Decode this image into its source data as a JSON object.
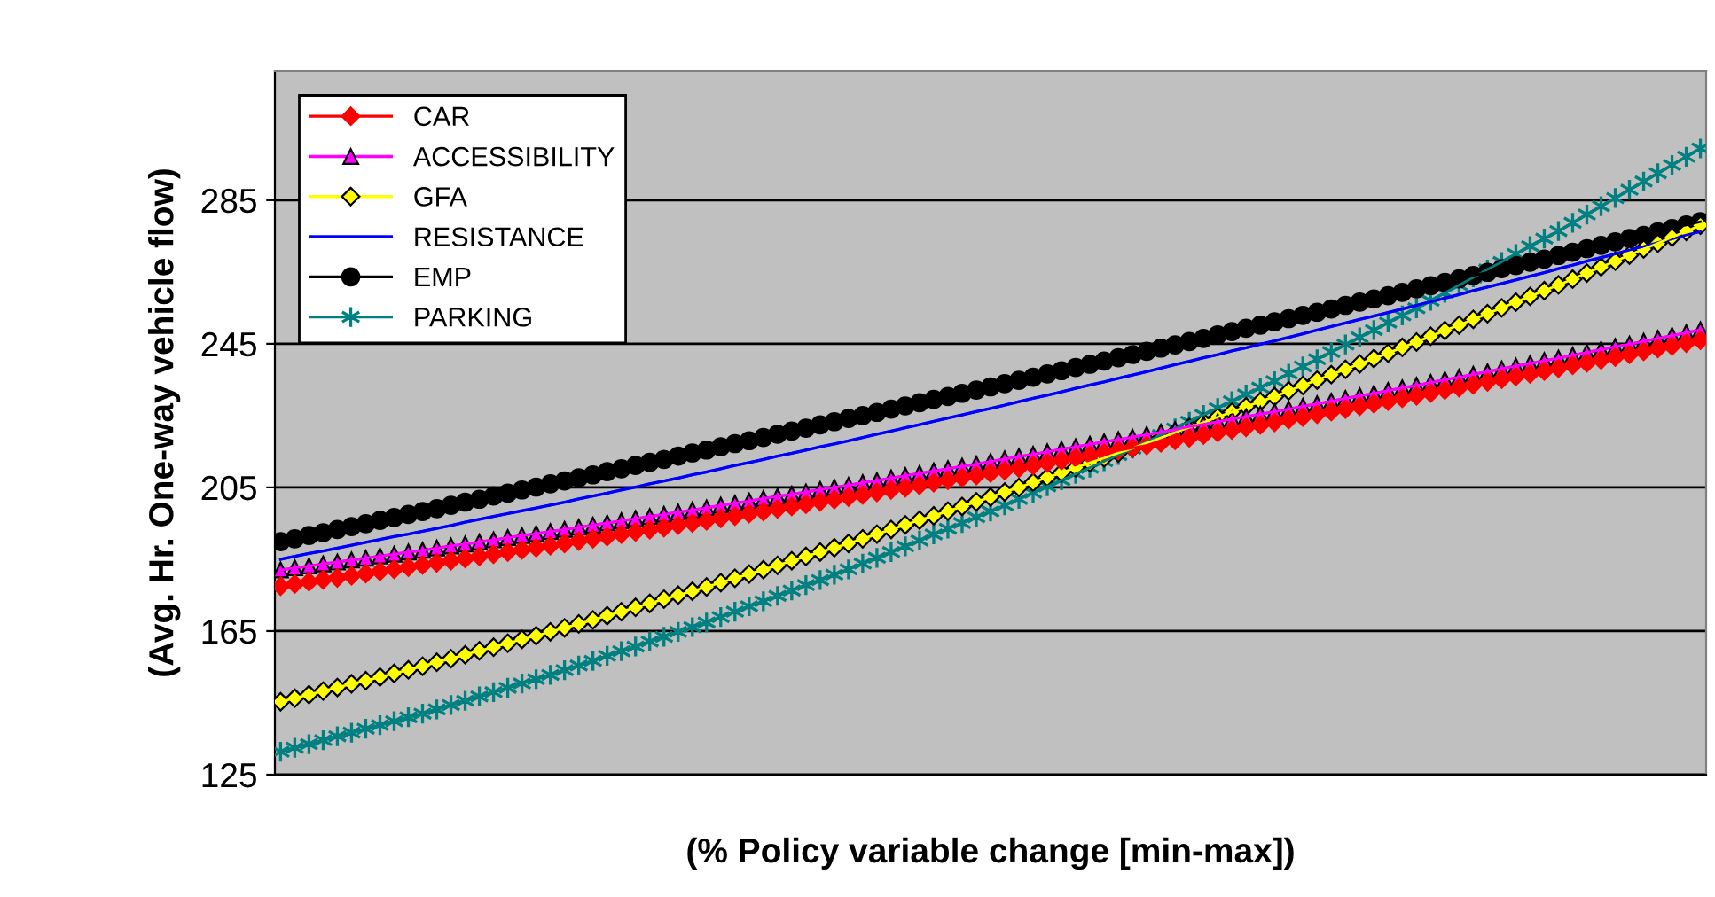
{
  "chart_data": {
    "type": "line",
    "xlabel": "(% Policy variable change [min-max])",
    "ylabel": "(Avg. Hr. One-way vehicle flow)",
    "categories": [
      null,
      null,
      null,
      null,
      null,
      null,
      null,
      null,
      null,
      null,
      null,
      null,
      null,
      null,
      null,
      null,
      null,
      null,
      null,
      null,
      null,
      null,
      null,
      null,
      null,
      null,
      null,
      null,
      null,
      null,
      null,
      null,
      null,
      null,
      null,
      null,
      null,
      null,
      null,
      null,
      null,
      null,
      null,
      null,
      null,
      null,
      null,
      null,
      null,
      null,
      null,
      null,
      null,
      null,
      null,
      null,
      null,
      null,
      null,
      null,
      null,
      null,
      null,
      null,
      null,
      null,
      null,
      null,
      null,
      null,
      null,
      null,
      null,
      null,
      null,
      null,
      null,
      null,
      null,
      null,
      null,
      null,
      null,
      null,
      null,
      null,
      null,
      null,
      null,
      null,
      null,
      null,
      null,
      null,
      null,
      null,
      null,
      null,
      null,
      null,
      null
    ],
    "ylim": [
      125,
      321
    ],
    "yticks": [
      125,
      165,
      205,
      245,
      285
    ],
    "grid": "y",
    "legend": "top left",
    "line_style": "solid",
    "series": [
      {
        "name": "CAR",
        "color": "#ff0000",
        "marker": "diamond",
        "values": [
          177.5,
          178.1,
          178.7,
          179.3,
          179.8,
          180.4,
          181.0,
          181.6,
          182.2,
          182.8,
          183.4,
          184.0,
          184.6,
          185.2,
          185.8,
          186.4,
          187.0,
          187.6,
          188.2,
          188.8,
          189.4,
          190.1,
          190.7,
          191.3,
          192.0,
          192.6,
          193.2,
          193.8,
          194.5,
          195.1,
          195.7,
          196.4,
          197.0,
          197.7,
          198.3,
          199.0,
          199.7,
          200.3,
          201.0,
          201.6,
          202.3,
          202.9,
          203.6,
          204.3,
          204.9,
          205.6,
          206.3,
          207.0,
          207.7,
          208.3,
          209.0,
          209.7,
          210.4,
          211.1,
          211.8,
          212.5,
          213.2,
          213.9,
          214.6,
          215.3,
          216.0,
          216.7,
          217.4,
          218.1,
          218.8,
          219.6,
          220.3,
          221.0,
          221.7,
          222.4,
          223.1,
          223.9,
          224.6,
          225.4,
          226.1,
          226.8,
          227.6,
          228.3,
          229.0,
          229.8,
          230.5,
          231.3,
          232.1,
          232.8,
          233.6,
          234.4,
          235.1,
          235.9,
          236.6,
          237.4,
          238.2,
          239.0,
          239.7,
          240.5,
          241.3,
          242.1,
          242.9,
          243.7,
          244.4,
          245.2,
          246.0
        ]
      },
      {
        "name": "ACCESSIBILITY",
        "color": "#ff00ff",
        "marker": "triangle",
        "values": [
          182.0,
          182.6,
          183.1,
          183.7,
          184.2,
          184.8,
          185.3,
          185.9,
          186.4,
          187.0,
          187.5,
          188.1,
          188.7,
          189.2,
          189.8,
          190.4,
          191.0,
          191.6,
          192.1,
          192.7,
          193.3,
          193.9,
          194.5,
          195.1,
          195.7,
          196.3,
          196.9,
          197.5,
          198.1,
          198.7,
          199.3,
          200.0,
          200.6,
          201.2,
          201.9,
          202.5,
          203.1,
          203.7,
          204.4,
          205.0,
          205.6,
          206.3,
          206.9,
          207.6,
          208.3,
          208.9,
          209.6,
          210.2,
          210.9,
          211.5,
          212.2,
          212.9,
          213.6,
          214.2,
          214.9,
          215.6,
          216.3,
          217.0,
          217.7,
          218.3,
          219.0,
          219.7,
          220.4,
          221.1,
          221.9,
          222.6,
          223.3,
          224.0,
          224.7,
          225.4,
          226.1,
          226.8,
          227.6,
          228.3,
          229.0,
          229.8,
          230.5,
          231.2,
          232.0,
          232.7,
          233.4,
          234.2,
          235.0,
          235.7,
          236.5,
          237.2,
          238.0,
          238.8,
          239.5,
          240.3,
          241.0,
          241.8,
          242.6,
          243.4,
          244.2,
          244.9,
          245.7,
          246.5,
          247.3,
          248.1,
          248.9
        ]
      },
      {
        "name": "GFA",
        "color": "#ffff00",
        "marker": "diamond",
        "values": [
          145.3,
          146.3,
          147.3,
          148.3,
          149.3,
          150.3,
          151.2,
          152.2,
          153.2,
          154.2,
          155.2,
          156.3,
          157.3,
          158.4,
          159.5,
          160.5,
          161.6,
          162.7,
          163.7,
          164.8,
          165.9,
          167.0,
          168.1,
          169.3,
          170.4,
          171.6,
          172.7,
          173.9,
          175.0,
          176.1,
          177.3,
          178.5,
          179.7,
          180.9,
          182.1,
          183.3,
          184.6,
          185.8,
          187.0,
          188.2,
          189.4,
          190.7,
          192.0,
          193.3,
          194.6,
          195.9,
          197.1,
          198.4,
          199.7,
          201.0,
          202.3,
          203.7,
          205.0,
          206.4,
          207.8,
          209.1,
          210.5,
          211.9,
          213.2,
          214.6,
          215.9,
          217.4,
          218.8,
          220.3,
          221.7,
          223.1,
          224.6,
          226.0,
          227.5,
          228.9,
          230.3,
          231.9,
          233.4,
          234.9,
          236.4,
          237.9,
          239.4,
          240.9,
          242.4,
          244.0,
          245.5,
          247.1,
          248.7,
          250.2,
          251.8,
          253.4,
          255.0,
          256.6,
          258.2,
          259.8,
          261.4,
          263.0,
          264.7,
          266.4,
          268.0,
          269.7,
          271.4,
          273.0,
          274.7,
          276.3,
          278.0
        ]
      },
      {
        "name": "RESISTANCE",
        "color": "#0000ff",
        "marker": "none",
        "values": [
          185.0,
          185.8,
          186.6,
          187.3,
          188.1,
          188.9,
          189.7,
          190.5,
          191.3,
          192.0,
          192.8,
          193.6,
          194.4,
          195.3,
          196.1,
          196.9,
          197.7,
          198.5,
          199.3,
          200.1,
          200.9,
          201.8,
          202.6,
          203.4,
          204.3,
          205.1,
          206.0,
          206.8,
          207.6,
          208.5,
          209.3,
          210.2,
          211.1,
          211.9,
          212.8,
          213.7,
          214.5,
          215.4,
          216.3,
          217.1,
          218.0,
          218.9,
          219.8,
          220.7,
          221.6,
          222.5,
          223.4,
          224.3,
          225.2,
          226.1,
          227.0,
          227.9,
          228.9,
          229.8,
          230.7,
          231.6,
          232.6,
          233.5,
          234.4,
          235.4,
          236.3,
          237.2,
          238.2,
          239.2,
          240.1,
          241.1,
          242.0,
          243.0,
          243.9,
          244.9,
          245.8,
          246.8,
          247.8,
          248.8,
          249.8,
          250.8,
          251.8,
          252.7,
          253.7,
          254.7,
          255.7,
          256.7,
          257.7,
          258.7,
          259.8,
          260.8,
          261.8,
          262.8,
          263.8,
          264.8,
          265.9,
          266.9,
          268.0,
          269.0,
          270.0,
          271.1,
          272.1,
          273.2,
          274.2,
          275.3,
          276.3
        ]
      },
      {
        "name": "EMP",
        "color": "#000000",
        "marker": "circle",
        "values": [
          189.9,
          190.7,
          191.6,
          192.4,
          193.3,
          194.1,
          194.9,
          195.8,
          196.6,
          197.5,
          198.3,
          199.1,
          200.0,
          200.9,
          201.7,
          202.6,
          203.4,
          204.3,
          205.1,
          206.0,
          206.8,
          207.7,
          208.5,
          209.4,
          210.2,
          211.1,
          212.0,
          212.8,
          213.7,
          214.6,
          215.4,
          216.3,
          217.2,
          218.0,
          218.9,
          219.8,
          220.7,
          221.5,
          222.4,
          223.3,
          224.2,
          225.0,
          225.9,
          226.8,
          227.7,
          228.6,
          229.5,
          230.3,
          231.2,
          232.1,
          233.0,
          233.9,
          234.8,
          235.7,
          236.6,
          237.5,
          238.4,
          239.3,
          240.2,
          241.1,
          242.0,
          242.9,
          243.8,
          244.7,
          245.6,
          246.5,
          247.5,
          248.4,
          249.3,
          250.2,
          251.1,
          252.0,
          252.9,
          253.8,
          254.7,
          255.7,
          256.6,
          257.5,
          258.4,
          259.3,
          260.3,
          261.2,
          262.1,
          263.1,
          264.0,
          264.9,
          265.9,
          266.8,
          267.7,
          268.6,
          269.6,
          270.5,
          271.5,
          272.4,
          273.4,
          274.3,
          275.2,
          276.2,
          277.1,
          278.1,
          279.0
        ]
      },
      {
        "name": "PARKING",
        "color": "#008080",
        "marker": "cross",
        "values": [
          131.4,
          132.5,
          133.5,
          134.6,
          135.7,
          136.7,
          137.8,
          138.8,
          139.9,
          141.0,
          142.0,
          143.2,
          144.4,
          145.6,
          146.8,
          148.0,
          149.2,
          150.4,
          151.6,
          152.8,
          154.1,
          155.4,
          156.7,
          158.1,
          159.4,
          160.7,
          162.1,
          163.4,
          164.8,
          166.1,
          167.4,
          168.9,
          170.4,
          171.9,
          173.3,
          174.8,
          176.3,
          177.8,
          179.2,
          180.7,
          182.2,
          183.8,
          185.4,
          187.0,
          188.6,
          190.2,
          191.9,
          193.5,
          195.1,
          196.7,
          198.3,
          200.0,
          201.8,
          203.5,
          205.3,
          207.0,
          208.8,
          210.5,
          212.3,
          214.0,
          215.8,
          217.7,
          219.6,
          221.4,
          223.3,
          225.2,
          227.1,
          229.0,
          230.9,
          232.8,
          234.6,
          236.7,
          238.7,
          240.7,
          242.7,
          244.8,
          246.8,
          248.8,
          250.9,
          252.9,
          254.9,
          257.0,
          259.2,
          261.3,
          263.5,
          265.7,
          267.8,
          270.0,
          272.2,
          274.3,
          276.4,
          278.7,
          281.0,
          283.3,
          285.6,
          287.9,
          290.2,
          292.5,
          294.8,
          297.1,
          299.4
        ]
      }
    ]
  }
}
